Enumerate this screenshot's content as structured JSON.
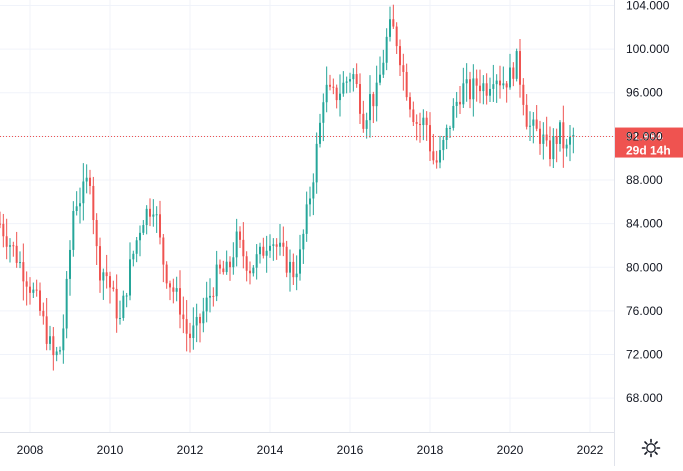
{
  "chart_data": {
    "type": "candlestick",
    "title": "",
    "xlabel": "",
    "ylabel": "",
    "x_ticks": [
      "2008",
      "2010",
      "2012",
      "2014",
      "2016",
      "2018",
      "2020",
      "2022"
    ],
    "x_tick_years": [
      2008,
      2010,
      2012,
      2014,
      2016,
      2018,
      2020,
      2022
    ],
    "xlim": [
      2007.25,
      2022.6
    ],
    "y_ticks": [
      "68.000",
      "72.000",
      "76.000",
      "80.000",
      "84.000",
      "88.000",
      "92.000",
      "96.000",
      "100.000",
      "104.000"
    ],
    "y_tick_values": [
      68,
      72,
      76,
      80,
      84,
      88,
      92,
      96,
      100,
      104
    ],
    "ylim": [
      64.9,
      104.5
    ],
    "grid": true,
    "interval": "monthly",
    "price_line": 91.984,
    "last_price_label": "91.984",
    "countdown_label": "29d 14h",
    "colors": {
      "up": "#26a69a",
      "down": "#ef5350",
      "grid": "#f0f3fa",
      "text": "#131722",
      "axis": "#e0e3eb"
    },
    "anchors": [
      [
        2007.25,
        84.0
      ],
      [
        2007.6,
        81.5
      ],
      [
        2007.95,
        78.8
      ],
      [
        2008.2,
        76.5
      ],
      [
        2008.45,
        73.5
      ],
      [
        2008.6,
        71.5
      ],
      [
        2008.75,
        72.5
      ],
      [
        2008.85,
        75.0
      ],
      [
        2009.1,
        86.0
      ],
      [
        2009.3,
        86.5
      ],
      [
        2009.5,
        88.5
      ],
      [
        2009.7,
        80.0
      ],
      [
        2009.9,
        79.5
      ],
      [
        2010.25,
        75.0
      ],
      [
        2010.5,
        80.0
      ],
      [
        2010.8,
        84.5
      ],
      [
        2011.1,
        86.0
      ],
      [
        2011.3,
        81.0
      ],
      [
        2011.45,
        79.0
      ],
      [
        2011.75,
        76.5
      ],
      [
        2011.95,
        73.5
      ],
      [
        2012.2,
        74.5
      ],
      [
        2012.4,
        76.5
      ],
      [
        2012.7,
        79.5
      ],
      [
        2012.95,
        79.5
      ],
      [
        2013.15,
        82.5
      ],
      [
        2013.5,
        80.0
      ],
      [
        2013.75,
        81.0
      ],
      [
        2014.0,
        83.0
      ],
      [
        2014.15,
        82.0
      ],
      [
        2014.4,
        80.5
      ],
      [
        2014.6,
        79.5
      ],
      [
        2014.75,
        81.0
      ],
      [
        2014.95,
        85.5
      ],
      [
        2015.1,
        89.0
      ],
      [
        2015.25,
        93.0
      ],
      [
        2015.35,
        96.5
      ],
      [
        2015.55,
        95.5
      ],
      [
        2015.7,
        96.0
      ],
      [
        2015.9,
        97.0
      ],
      [
        2016.05,
        98.0
      ],
      [
        2016.2,
        96.0
      ],
      [
        2016.35,
        93.5
      ],
      [
        2016.5,
        95.5
      ],
      [
        2016.65,
        95.5
      ],
      [
        2016.8,
        98.5
      ],
      [
        2016.95,
        101.5
      ],
      [
        2017.05,
        102.0
      ],
      [
        2017.2,
        100.5
      ],
      [
        2017.35,
        97.5
      ],
      [
        2017.55,
        94.5
      ],
      [
        2017.7,
        93.0
      ],
      [
        2017.9,
        93.5
      ],
      [
        2018.05,
        90.0
      ],
      [
        2018.2,
        89.5
      ],
      [
        2018.4,
        92.0
      ],
      [
        2018.6,
        94.5
      ],
      [
        2018.8,
        96.5
      ],
      [
        2019.0,
        96.0
      ],
      [
        2019.2,
        97.0
      ],
      [
        2019.4,
        96.5
      ],
      [
        2019.6,
        98.0
      ],
      [
        2019.8,
        97.0
      ],
      [
        2020.0,
        97.5
      ],
      [
        2020.15,
        99.0
      ],
      [
        2020.3,
        96.5
      ],
      [
        2020.45,
        93.0
      ],
      [
        2020.6,
        92.5
      ],
      [
        2020.8,
        92.0
      ],
      [
        2020.95,
        90.2
      ],
      [
        2021.1,
        91.5
      ],
      [
        2021.25,
        92.3
      ],
      [
        2021.4,
        90.5
      ],
      [
        2021.55,
        92.0
      ],
      [
        2021.65,
        91.98
      ]
    ]
  }
}
